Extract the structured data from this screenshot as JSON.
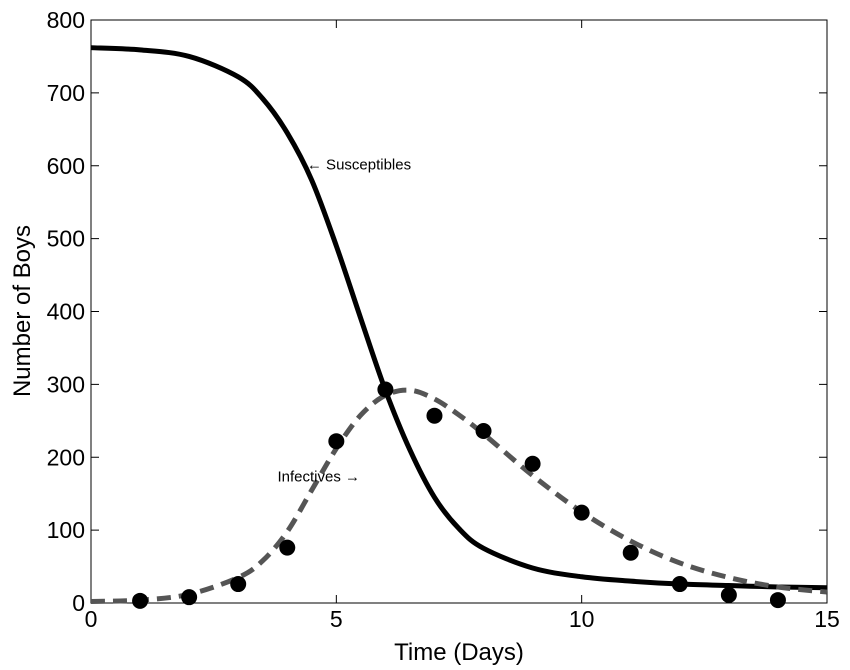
{
  "chart_data": {
    "type": "line",
    "title": "",
    "xlabel": "Time (Days)",
    "ylabel": "Number of Boys",
    "xlim": [
      0,
      15
    ],
    "ylim": [
      0,
      800
    ],
    "xticks": [
      0,
      5,
      10,
      15
    ],
    "yticks": [
      0,
      100,
      200,
      300,
      400,
      500,
      600,
      700,
      800
    ],
    "grid": false,
    "legend": "none",
    "series": [
      {
        "style": "solid",
        "color": "#000000",
        "x": [
          0,
          1,
          2,
          3,
          3.5,
          4,
          4.5,
          5,
          5.5,
          6,
          6.5,
          7,
          7.5,
          8,
          9,
          10,
          11,
          12,
          13,
          14,
          15
        ],
        "y": [
          762,
          759,
          750,
          722,
          692,
          645,
          580,
          490,
          390,
          292,
          210,
          145,
          102,
          75,
          48,
          36,
          30,
          26,
          24,
          22,
          21
        ]
      },
      {
        "style": "dashed",
        "color": "#555555",
        "x": [
          0,
          1,
          2,
          3,
          3.5,
          4,
          4.5,
          5,
          5.5,
          6,
          6.5,
          7,
          7.5,
          8,
          9,
          10,
          11,
          12,
          13,
          14,
          15
        ],
        "y": [
          2,
          4,
          12,
          35,
          58,
          98,
          155,
          212,
          258,
          285,
          292,
          280,
          258,
          232,
          175,
          125,
          85,
          55,
          35,
          22,
          15
        ]
      },
      {
        "style": "points",
        "color": "#000000",
        "x": [
          1,
          2,
          3,
          4,
          5,
          6,
          7,
          8,
          9,
          10,
          11,
          12,
          13,
          14
        ],
        "y": [
          3,
          8,
          26,
          76,
          222,
          293,
          257,
          236,
          191,
          124,
          69,
          26,
          11,
          4
        ]
      }
    ],
    "annotations": [
      {
        "text": "← Susceptibles",
        "x": 4.4,
        "y": 595
      },
      {
        "text": "Infectives →",
        "x": 3.8,
        "y": 167
      }
    ]
  }
}
